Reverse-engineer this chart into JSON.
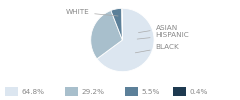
{
  "slices": [
    {
      "label": "WHITE",
      "value": 64.8,
      "color": "#dce6f0"
    },
    {
      "label": "BLACK",
      "value": 29.2,
      "color": "#a8bfcc"
    },
    {
      "label": "HISPANIC",
      "value": 5.5,
      "color": "#5c8099"
    },
    {
      "label": "ASIAN",
      "value": 0.4,
      "color": "#1e3a50"
    }
  ],
  "legend": [
    {
      "pct": "64.8%",
      "color": "#dce6f0"
    },
    {
      "pct": "29.2%",
      "color": "#a8bfcc"
    },
    {
      "pct": "5.5%",
      "color": "#5c8099"
    },
    {
      "pct": "0.4%",
      "color": "#1e3a50"
    }
  ],
  "background": "#ffffff",
  "text_color": "#888888",
  "font_size": 5.2
}
